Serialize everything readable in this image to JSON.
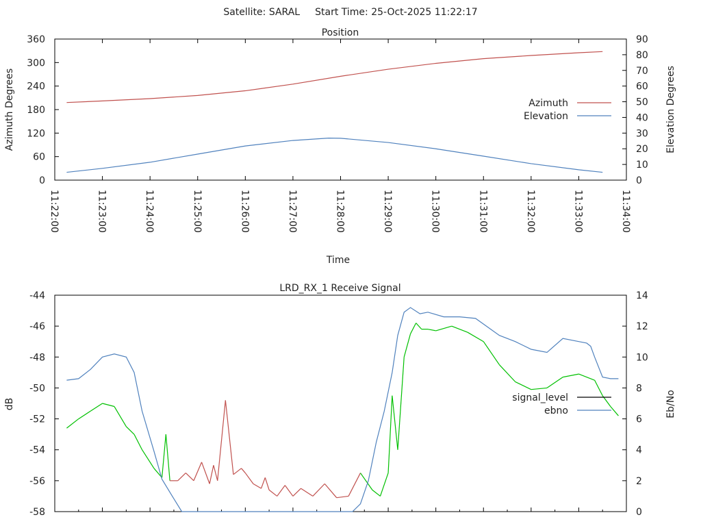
{
  "header": {
    "satellite": "Satellite: SARAL",
    "start_time": "Start Time: 25-Oct-2025 11:22:17"
  },
  "chart_data": [
    {
      "type": "line",
      "title": "Position",
      "xlabel": "Time",
      "ylabel": "Azimuth Degrees",
      "y2label": "Elevation Degrees",
      "x_unit": "seconds since 11:22:00",
      "xlim": [
        0,
        720
      ],
      "ylim": [
        0,
        360
      ],
      "y2lim": [
        0,
        90
      ],
      "yticks": [
        "0",
        "60",
        "120",
        "180",
        "240",
        "300",
        "360"
      ],
      "y2ticks": [
        "0",
        "10",
        "20",
        "30",
        "40",
        "50",
        "60",
        "70",
        "80",
        "90"
      ],
      "xticks": [
        "11:22:00",
        "11:23:00",
        "11:24:00",
        "11:25:00",
        "11:26:00",
        "11:27:00",
        "11:28:00",
        "11:29:00",
        "11:30:00",
        "11:31:00",
        "11:32:00",
        "11:33:00",
        "11:34:00"
      ],
      "legend_position": "right",
      "series": [
        {
          "name": "Azimuth",
          "axis": "y",
          "color": "#c0504d",
          "x": [
            15,
            60,
            120,
            180,
            240,
            300,
            360,
            420,
            480,
            540,
            600,
            660,
            690
          ],
          "y": [
            198,
            202,
            208,
            216,
            228,
            245,
            265,
            283,
            298,
            310,
            318,
            325,
            328
          ]
        },
        {
          "name": "Elevation",
          "axis": "y2",
          "color": "#4f81bd",
          "x": [
            15,
            60,
            120,
            180,
            240,
            300,
            345,
            360,
            420,
            480,
            540,
            600,
            660,
            690
          ],
          "y": [
            5,
            7.5,
            11.4,
            16.6,
            21.8,
            25.3,
            26.8,
            26.7,
            24,
            20,
            15.3,
            10.5,
            6.6,
            5
          ]
        }
      ]
    },
    {
      "type": "line",
      "title": "LRD_RX_1 Receive Signal",
      "ylabel": "dB",
      "y2label": "Eb/No",
      "x_unit": "seconds since 11:22:00",
      "xlim": [
        0,
        720
      ],
      "ylim": [
        -58,
        -44
      ],
      "y2lim": [
        0,
        14
      ],
      "yticks": [
        "-58",
        "-56",
        "-54",
        "-52",
        "-50",
        "-48",
        "-46",
        "-44"
      ],
      "y2ticks": [
        "0",
        "2",
        "4",
        "6",
        "8",
        "10",
        "12",
        "14"
      ],
      "legend_position": "right",
      "series": [
        {
          "name": "signal_level",
          "axis": "y",
          "color": "#000000",
          "color_good": "#00c000",
          "color_bad": "#c0504d",
          "x": [
            15,
            30,
            45,
            60,
            75,
            90,
            100,
            110,
            125,
            135,
            140,
            145,
            155,
            165,
            175,
            185,
            195,
            200,
            205,
            215,
            225,
            235,
            240,
            250,
            260,
            265,
            270,
            280,
            290,
            300,
            310,
            325,
            340,
            355,
            370,
            385,
            400,
            410,
            420,
            425,
            432,
            440,
            448,
            455,
            462,
            470,
            480,
            500,
            520,
            540,
            560,
            580,
            600,
            620,
            640,
            660,
            680,
            690,
            700,
            710
          ],
          "y": [
            -52.6,
            -52,
            -51.5,
            -51,
            -51.2,
            -52.5,
            -53,
            -54,
            -55.2,
            -55.8,
            -53,
            -56,
            -56,
            -55.5,
            -56,
            -54.8,
            -56.2,
            -55,
            -56,
            -50.8,
            -55.6,
            -55.2,
            -55.5,
            -56.2,
            -56.5,
            -55.8,
            -56.6,
            -57,
            -56.3,
            -57,
            -56.5,
            -57,
            -56.2,
            -57.1,
            -57,
            -55.5,
            -56.6,
            -57,
            -55.5,
            -50.5,
            -54,
            -48,
            -46.5,
            -45.8,
            -46.2,
            -46.2,
            -46.3,
            -46,
            -46.4,
            -47,
            -48.5,
            -49.6,
            -50.1,
            -50,
            -49.3,
            -49.1,
            -49.5,
            -50.5,
            -51.2,
            -51.8
          ]
        },
        {
          "name": "ebno",
          "axis": "y2",
          "color": "#4f81bd",
          "x": [
            15,
            30,
            45,
            60,
            75,
            90,
            100,
            110,
            125,
            135,
            148,
            160,
            170,
            185,
            200,
            220,
            240,
            260,
            280,
            300,
            320,
            340,
            360,
            375,
            385,
            395,
            405,
            415,
            425,
            432,
            440,
            448,
            460,
            470,
            490,
            510,
            530,
            560,
            580,
            600,
            620,
            640,
            660,
            670,
            675,
            680,
            690,
            700,
            710
          ],
          "y": [
            8.5,
            8.6,
            9.2,
            10,
            10.2,
            10,
            9,
            6.5,
            3.9,
            2.1,
            1,
            0,
            0,
            0,
            0,
            0,
            0,
            0,
            0,
            0,
            0,
            0,
            0,
            0,
            0.5,
            2,
            4.5,
            6.5,
            9,
            11.4,
            12.9,
            13.2,
            12.8,
            12.9,
            12.6,
            12.6,
            12.5,
            11.4,
            11,
            10.5,
            10.3,
            11.2,
            11,
            10.9,
            10.7,
            10,
            8.7,
            8.6,
            8.6
          ]
        }
      ]
    }
  ]
}
